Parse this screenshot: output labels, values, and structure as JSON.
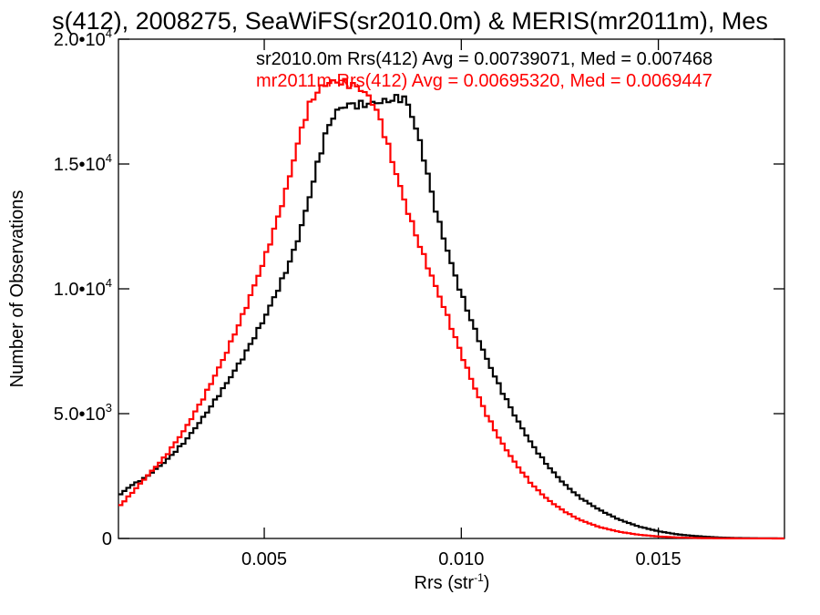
{
  "chart_data": {
    "type": "line",
    "title": "s(412), 2008275, SeaWiFS(sr2010.0m) & MERIS(mr2011m), Mes",
    "xlabel": "Rrs (str",
    "xlabel_sup": "-1",
    "xlabel_close": ")",
    "ylabel": "Number of Observations",
    "xlim": [
      0.0013,
      0.0182
    ],
    "ylim": [
      0,
      20000
    ],
    "x_ticks": [
      {
        "value": 0.005,
        "label": "0.005"
      },
      {
        "value": 0.01,
        "label": "0.010"
      },
      {
        "value": 0.015,
        "label": "0.015"
      }
    ],
    "y_ticks": [
      {
        "value": 0,
        "base": "0",
        "exp": ""
      },
      {
        "value": 5000,
        "base": "5.0•10",
        "exp": "3"
      },
      {
        "value": 10000,
        "base": "1.0•10",
        "exp": "4"
      },
      {
        "value": 15000,
        "base": "1.5•10",
        "exp": "4"
      },
      {
        "value": 20000,
        "base": "2.0•10",
        "exp": "4"
      }
    ],
    "grid": false,
    "series": [
      {
        "name": "sr2010.0m Rrs(412) Avg = 0.00739071, Med = 0.007468",
        "color": "#000000",
        "points": [
          [
            0.0013,
            1700
          ],
          [
            0.0016,
            2100
          ],
          [
            0.002,
            2450
          ],
          [
            0.0025,
            3100
          ],
          [
            0.003,
            3900
          ],
          [
            0.0035,
            4950
          ],
          [
            0.004,
            6100
          ],
          [
            0.0045,
            7350
          ],
          [
            0.005,
            8800
          ],
          [
            0.0055,
            10500
          ],
          [
            0.0058,
            11700
          ],
          [
            0.006,
            12800
          ],
          [
            0.0062,
            14000
          ],
          [
            0.0064,
            15300
          ],
          [
            0.0066,
            16400
          ],
          [
            0.0068,
            17050
          ],
          [
            0.007,
            17300
          ],
          [
            0.0072,
            17400
          ],
          [
            0.0074,
            17350
          ],
          [
            0.0076,
            17400
          ],
          [
            0.0078,
            17450
          ],
          [
            0.008,
            17500
          ],
          [
            0.0082,
            17550
          ],
          [
            0.0084,
            17650
          ],
          [
            0.0086,
            17600
          ],
          [
            0.0088,
            16700
          ],
          [
            0.009,
            15600
          ],
          [
            0.0092,
            14200
          ],
          [
            0.0094,
            12850
          ],
          [
            0.0096,
            11800
          ],
          [
            0.0098,
            10750
          ],
          [
            0.01,
            9800
          ],
          [
            0.0103,
            8550
          ],
          [
            0.0106,
            7350
          ],
          [
            0.011,
            6000
          ],
          [
            0.0114,
            4800
          ],
          [
            0.0118,
            3750
          ],
          [
            0.0122,
            2900
          ],
          [
            0.0126,
            2200
          ],
          [
            0.013,
            1650
          ],
          [
            0.0135,
            1150
          ],
          [
            0.014,
            760
          ],
          [
            0.0145,
            480
          ],
          [
            0.015,
            290
          ],
          [
            0.0155,
            160
          ],
          [
            0.016,
            90
          ],
          [
            0.0165,
            40
          ],
          [
            0.017,
            18
          ],
          [
            0.0175,
            8
          ],
          [
            0.018,
            3
          ]
        ]
      },
      {
        "name": "mr2011m Rrs(412) Avg = 0.00695320, Med = 0.0069447",
        "color": "#ff0000",
        "points": [
          [
            0.0013,
            1250
          ],
          [
            0.0016,
            1750
          ],
          [
            0.002,
            2450
          ],
          [
            0.0025,
            3300
          ],
          [
            0.003,
            4400
          ],
          [
            0.0035,
            5750
          ],
          [
            0.004,
            7300
          ],
          [
            0.0045,
            9100
          ],
          [
            0.005,
            11150
          ],
          [
            0.0053,
            12600
          ],
          [
            0.0056,
            14200
          ],
          [
            0.0058,
            15500
          ],
          [
            0.006,
            16700
          ],
          [
            0.0062,
            17550
          ],
          [
            0.0064,
            18000
          ],
          [
            0.0066,
            18250
          ],
          [
            0.0068,
            18300
          ],
          [
            0.007,
            18250
          ],
          [
            0.0072,
            18200
          ],
          [
            0.0074,
            18050
          ],
          [
            0.0076,
            17800
          ],
          [
            0.0078,
            17350
          ],
          [
            0.008,
            16500
          ],
          [
            0.0082,
            15400
          ],
          [
            0.0084,
            14350
          ],
          [
            0.0086,
            13300
          ],
          [
            0.0088,
            12400
          ],
          [
            0.009,
            11500
          ],
          [
            0.0092,
            10700
          ],
          [
            0.0094,
            9900
          ],
          [
            0.0096,
            9100
          ],
          [
            0.0098,
            8250
          ],
          [
            0.01,
            7400
          ],
          [
            0.0103,
            6200
          ],
          [
            0.0106,
            5100
          ],
          [
            0.011,
            3900
          ],
          [
            0.0114,
            2950
          ],
          [
            0.0118,
            2150
          ],
          [
            0.0122,
            1550
          ],
          [
            0.0126,
            1100
          ],
          [
            0.013,
            750
          ],
          [
            0.0135,
            460
          ],
          [
            0.014,
            270
          ],
          [
            0.0145,
            150
          ],
          [
            0.015,
            80
          ],
          [
            0.0155,
            40
          ],
          [
            0.016,
            18
          ],
          [
            0.0165,
            8
          ],
          [
            0.017,
            3
          ],
          [
            0.018,
            1
          ]
        ]
      }
    ]
  }
}
